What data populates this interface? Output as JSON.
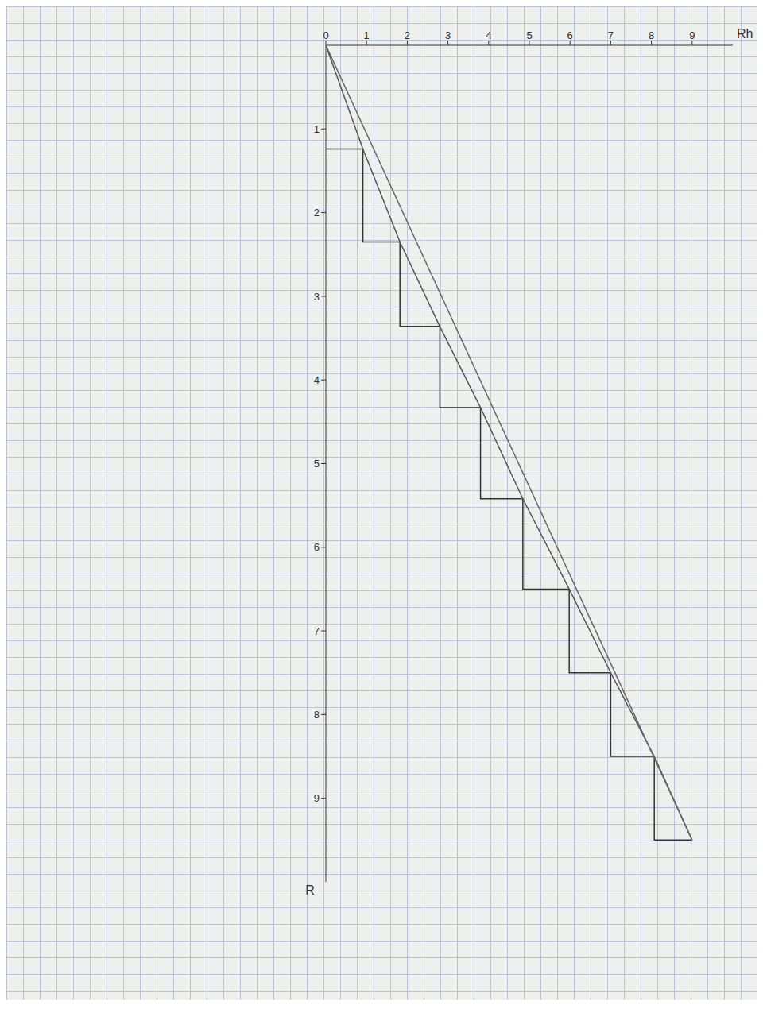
{
  "chart_data": {
    "type": "line",
    "x_label": "Rh",
    "y_label": "R",
    "xlim": [
      0,
      10
    ],
    "xticks": [
      0,
      1,
      2,
      3,
      4,
      5,
      6,
      7,
      8,
      9
    ],
    "ylim": [
      0,
      10
    ],
    "yticks": [
      1,
      2,
      3,
      4,
      5,
      6,
      7,
      8,
      9
    ],
    "series": [
      {
        "color": "#333333",
        "line_style": "solid",
        "x": [
          0,
          0.91,
          0.91,
          1.82,
          1.82,
          2.8,
          2.8,
          3.8,
          3.8,
          4.84,
          4.84,
          5.98,
          5.98,
          7.0,
          7.0,
          8.07,
          8.07,
          9.0
        ],
        "values": [
          1.24,
          1.24,
          2.35,
          2.35,
          3.36,
          3.36,
          4.33,
          4.33,
          5.42,
          5.42,
          6.5,
          6.5,
          7.5,
          7.5,
          8.5,
          8.5,
          9.5,
          9.5
        ]
      },
      {
        "color": "#555555",
        "line_style": "solid",
        "x": [
          0,
          0.91,
          1.82,
          2.8,
          3.8,
          4.84,
          5.98,
          7.0,
          8.07,
          9.0
        ],
        "values": [
          0,
          1.24,
          2.35,
          3.36,
          4.33,
          5.42,
          6.5,
          7.5,
          8.5,
          9.5
        ]
      },
      {
        "color": "#666666",
        "line_style": "solid",
        "x": [
          0,
          9.0
        ],
        "values": [
          0,
          9.5
        ]
      }
    ]
  }
}
